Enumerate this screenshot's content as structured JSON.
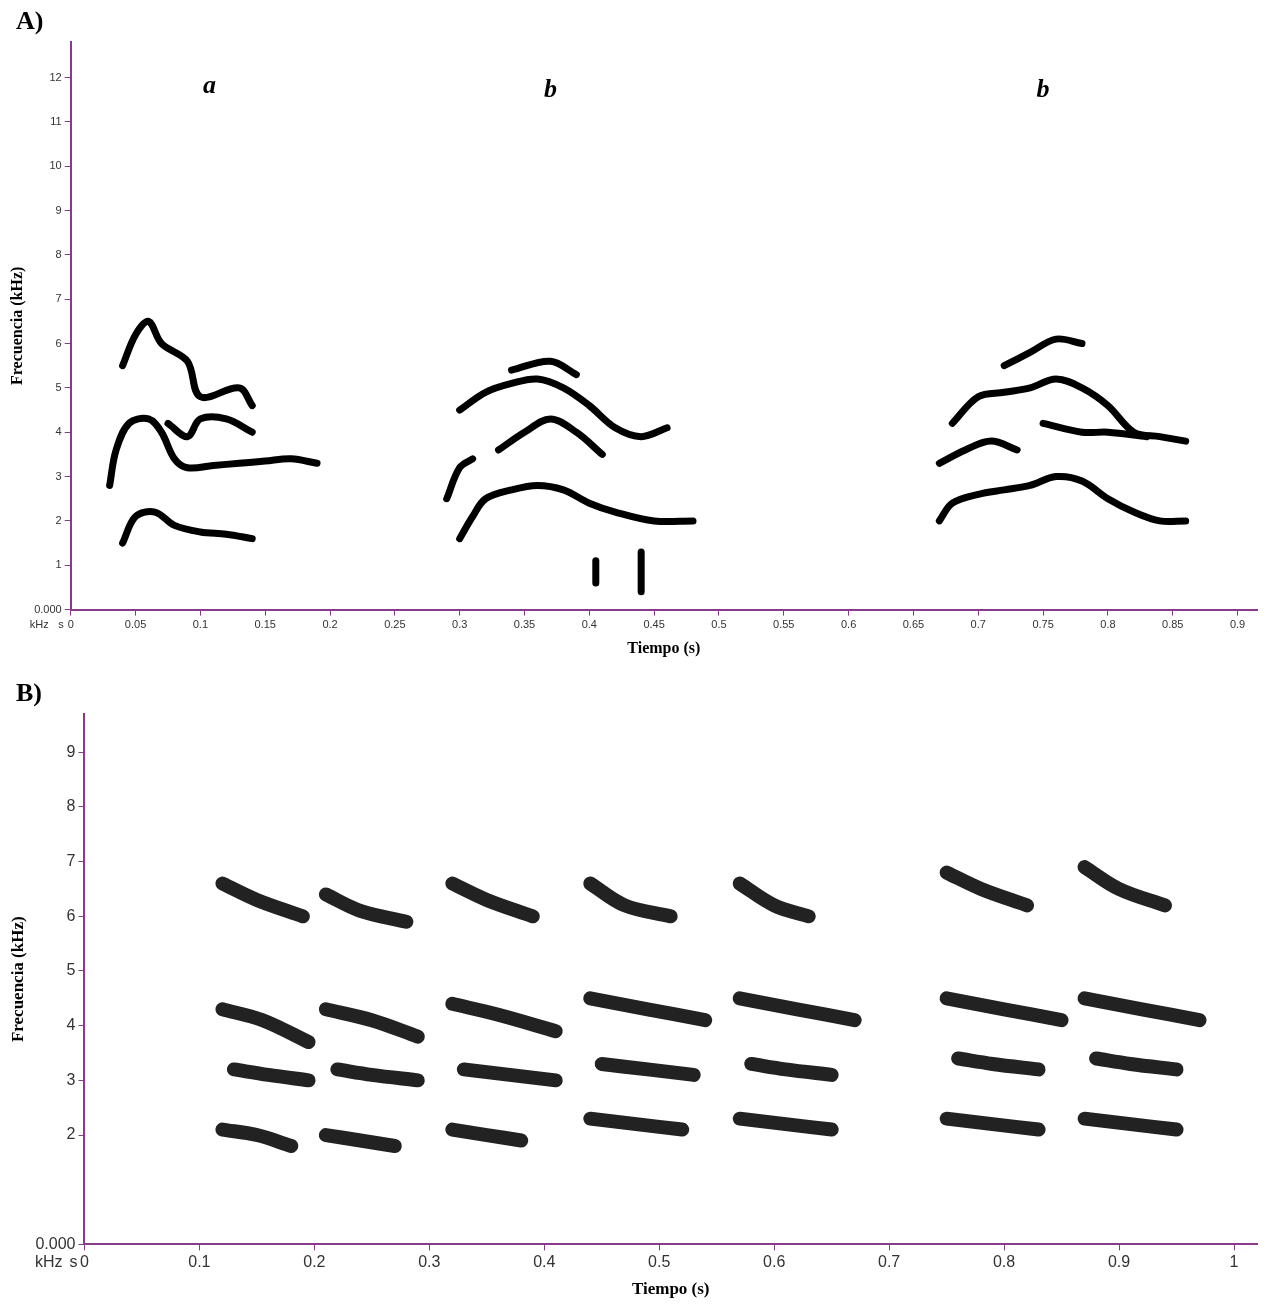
{
  "chart_data": [
    {
      "type": "line",
      "panel_label": "A)",
      "x_label": "Tiempo (s)",
      "y_label": "Frecuencia (kHz)",
      "x_unit": "s",
      "y_unit": "kHz",
      "xlim": [
        0,
        0.915
      ],
      "ylim": [
        0,
        12.8
      ],
      "xticks": [
        0,
        0.05,
        0.1,
        0.15,
        0.2,
        0.25,
        0.3,
        0.35,
        0.4,
        0.45,
        0.5,
        0.55,
        0.6,
        0.65,
        0.7,
        0.75,
        0.8,
        0.85,
        0.9
      ],
      "yticks": [
        {
          "value": 0,
          "label": "0.000"
        },
        1,
        2,
        3,
        4,
        5,
        6,
        7,
        8,
        9,
        10,
        11,
        12
      ],
      "grid": false,
      "annotations": [
        {
          "text": "a",
          "x": 0.107,
          "y": 11.8
        },
        {
          "text": "b",
          "x": 0.37,
          "y": 11.7
        },
        {
          "text": "b",
          "x": 0.75,
          "y": 11.7
        }
      ],
      "series": [
        {
          "color": "#000000",
          "x": [
            0.04,
            0.05,
            0.065,
            0.08,
            0.1,
            0.12,
            0.14
          ],
          "values": [
            1.5,
            2.1,
            2.2,
            1.9,
            1.75,
            1.7,
            1.6
          ]
        },
        {
          "color": "#000000",
          "x": [
            0.03,
            0.035,
            0.045,
            0.06,
            0.07,
            0.08,
            0.09,
            0.11,
            0.13,
            0.15,
            0.17,
            0.19
          ],
          "values": [
            2.8,
            3.6,
            4.2,
            4.3,
            4.0,
            3.4,
            3.2,
            3.25,
            3.3,
            3.35,
            3.4,
            3.3
          ]
        },
        {
          "color": "#000000",
          "x": [
            0.075,
            0.09,
            0.1,
            0.12,
            0.14
          ],
          "values": [
            4.2,
            3.9,
            4.3,
            4.3,
            4.0
          ]
        },
        {
          "color": "#000000",
          "x": [
            0.04,
            0.05,
            0.06,
            0.07,
            0.09,
            0.1,
            0.13,
            0.14
          ],
          "values": [
            5.5,
            6.2,
            6.5,
            6.0,
            5.6,
            4.8,
            5.0,
            4.6
          ]
        },
        {
          "color": "#000000",
          "x": [
            0.29,
            0.3,
            0.31
          ],
          "values": [
            2.5,
            3.2,
            3.4
          ]
        },
        {
          "color": "#000000",
          "x": [
            0.3,
            0.31,
            0.32,
            0.34,
            0.36,
            0.38,
            0.4,
            0.42,
            0.45,
            0.48
          ],
          "values": [
            1.6,
            2.1,
            2.5,
            2.7,
            2.8,
            2.7,
            2.4,
            2.2,
            2.0,
            2.0
          ]
        },
        {
          "color": "#000000",
          "x": [
            0.3,
            0.32,
            0.34,
            0.36,
            0.38,
            0.4,
            0.42,
            0.44,
            0.46
          ],
          "values": [
            4.5,
            4.9,
            5.1,
            5.2,
            5.0,
            4.6,
            4.1,
            3.9,
            4.1
          ]
        },
        {
          "color": "#000000",
          "x": [
            0.33,
            0.35,
            0.37,
            0.39,
            0.41
          ],
          "values": [
            3.6,
            4.0,
            4.3,
            4.0,
            3.5
          ]
        },
        {
          "color": "#000000",
          "x": [
            0.34,
            0.37,
            0.39
          ],
          "values": [
            5.4,
            5.6,
            5.3
          ]
        },
        {
          "color": "#000000",
          "x": [
            0.405,
            0.405
          ],
          "values": [
            0.6,
            1.1
          ]
        },
        {
          "color": "#000000",
          "x": [
            0.44,
            0.44
          ],
          "values": [
            0.4,
            1.3
          ]
        },
        {
          "color": "#000000",
          "x": [
            0.67,
            0.68,
            0.7,
            0.72,
            0.74,
            0.76,
            0.78,
            0.8,
            0.82,
            0.84,
            0.86
          ],
          "values": [
            2.0,
            2.4,
            2.6,
            2.7,
            2.8,
            3.0,
            2.9,
            2.5,
            2.2,
            2.0,
            2.0
          ]
        },
        {
          "color": "#000000",
          "x": [
            0.67,
            0.69,
            0.71,
            0.73
          ],
          "values": [
            3.3,
            3.6,
            3.8,
            3.6
          ]
        },
        {
          "color": "#000000",
          "x": [
            0.68,
            0.7,
            0.72,
            0.74,
            0.76,
            0.78,
            0.8,
            0.82,
            0.84,
            0.86
          ],
          "values": [
            4.2,
            4.8,
            4.9,
            5.0,
            5.2,
            5.0,
            4.6,
            4.0,
            3.9,
            3.8
          ]
        },
        {
          "color": "#000000",
          "x": [
            0.75,
            0.78,
            0.8,
            0.83
          ],
          "values": [
            4.2,
            4.0,
            4.0,
            3.9
          ]
        },
        {
          "color": "#000000",
          "x": [
            0.72,
            0.74,
            0.76,
            0.78
          ],
          "values": [
            5.5,
            5.8,
            6.1,
            6.0
          ]
        }
      ]
    },
    {
      "type": "line",
      "panel_label": "B)",
      "x_label": "Tiempo (s)",
      "y_label": "Frecuencia (kHz)",
      "x_unit": "s",
      "y_unit": "kHz",
      "xlim": [
        0,
        1.02
      ],
      "ylim": [
        0,
        9.7
      ],
      "xticks": [
        0,
        0.1,
        0.2,
        0.3,
        0.4,
        0.5,
        0.6,
        0.7,
        0.8,
        0.9,
        1
      ],
      "yticks": [
        {
          "value": 0,
          "label": "0.000"
        },
        2,
        3,
        4,
        5,
        6,
        7,
        8,
        9
      ],
      "grid": false,
      "annotations": [],
      "series": [
        {
          "color": "#222222",
          "x": [
            0.12,
            0.15,
            0.19
          ],
          "values": [
            6.6,
            6.3,
            6.0
          ]
        },
        {
          "color": "#222222",
          "x": [
            0.12,
            0.155,
            0.195
          ],
          "values": [
            4.3,
            4.1,
            3.7
          ]
        },
        {
          "color": "#222222",
          "x": [
            0.13,
            0.16,
            0.195
          ],
          "values": [
            3.2,
            3.1,
            3.0
          ]
        },
        {
          "color": "#222222",
          "x": [
            0.12,
            0.15,
            0.18
          ],
          "values": [
            2.1,
            2.0,
            1.8
          ]
        },
        {
          "color": "#222222",
          "x": [
            0.21,
            0.24,
            0.28
          ],
          "values": [
            6.4,
            6.1,
            5.9
          ]
        },
        {
          "color": "#222222",
          "x": [
            0.21,
            0.25,
            0.29
          ],
          "values": [
            4.3,
            4.1,
            3.8
          ]
        },
        {
          "color": "#222222",
          "x": [
            0.22,
            0.25,
            0.29
          ],
          "values": [
            3.2,
            3.1,
            3.0
          ]
        },
        {
          "color": "#222222",
          "x": [
            0.21,
            0.24,
            0.27
          ],
          "values": [
            2.0,
            1.9,
            1.8
          ]
        },
        {
          "color": "#222222",
          "x": [
            0.32,
            0.35,
            0.39
          ],
          "values": [
            6.6,
            6.3,
            6.0
          ]
        },
        {
          "color": "#222222",
          "x": [
            0.32,
            0.36,
            0.41
          ],
          "values": [
            4.4,
            4.2,
            3.9
          ]
        },
        {
          "color": "#222222",
          "x": [
            0.33,
            0.37,
            0.41
          ],
          "values": [
            3.2,
            3.1,
            3.0
          ]
        },
        {
          "color": "#222222",
          "x": [
            0.32,
            0.35,
            0.38
          ],
          "values": [
            2.1,
            2.0,
            1.9
          ]
        },
        {
          "color": "#222222",
          "x": [
            0.44,
            0.47,
            0.51
          ],
          "values": [
            6.6,
            6.2,
            6.0
          ]
        },
        {
          "color": "#222222",
          "x": [
            0.44,
            0.49,
            0.54
          ],
          "values": [
            4.5,
            4.3,
            4.1
          ]
        },
        {
          "color": "#222222",
          "x": [
            0.45,
            0.49,
            0.53
          ],
          "values": [
            3.3,
            3.2,
            3.1
          ]
        },
        {
          "color": "#222222",
          "x": [
            0.44,
            0.48,
            0.52
          ],
          "values": [
            2.3,
            2.2,
            2.1
          ]
        },
        {
          "color": "#222222",
          "x": [
            0.57,
            0.6,
            0.63
          ],
          "values": [
            6.6,
            6.2,
            6.0
          ]
        },
        {
          "color": "#222222",
          "x": [
            0.57,
            0.62,
            0.67
          ],
          "values": [
            4.5,
            4.3,
            4.1
          ]
        },
        {
          "color": "#222222",
          "x": [
            0.58,
            0.61,
            0.65
          ],
          "values": [
            3.3,
            3.2,
            3.1
          ]
        },
        {
          "color": "#222222",
          "x": [
            0.57,
            0.61,
            0.65
          ],
          "values": [
            2.3,
            2.2,
            2.1
          ]
        },
        {
          "color": "#222222",
          "x": [
            0.75,
            0.78,
            0.82
          ],
          "values": [
            6.8,
            6.5,
            6.2
          ]
        },
        {
          "color": "#222222",
          "x": [
            0.75,
            0.8,
            0.85
          ],
          "values": [
            4.5,
            4.3,
            4.1
          ]
        },
        {
          "color": "#222222",
          "x": [
            0.76,
            0.79,
            0.83
          ],
          "values": [
            3.4,
            3.3,
            3.2
          ]
        },
        {
          "color": "#222222",
          "x": [
            0.75,
            0.79,
            0.83
          ],
          "values": [
            2.3,
            2.2,
            2.1
          ]
        },
        {
          "color": "#222222",
          "x": [
            0.87,
            0.9,
            0.94
          ],
          "values": [
            6.9,
            6.5,
            6.2
          ]
        },
        {
          "color": "#222222",
          "x": [
            0.87,
            0.92,
            0.97
          ],
          "values": [
            4.5,
            4.3,
            4.1
          ]
        },
        {
          "color": "#222222",
          "x": [
            0.88,
            0.91,
            0.95
          ],
          "values": [
            3.4,
            3.3,
            3.2
          ]
        },
        {
          "color": "#222222",
          "x": [
            0.87,
            0.91,
            0.95
          ],
          "values": [
            2.3,
            2.2,
            2.1
          ]
        }
      ]
    }
  ]
}
